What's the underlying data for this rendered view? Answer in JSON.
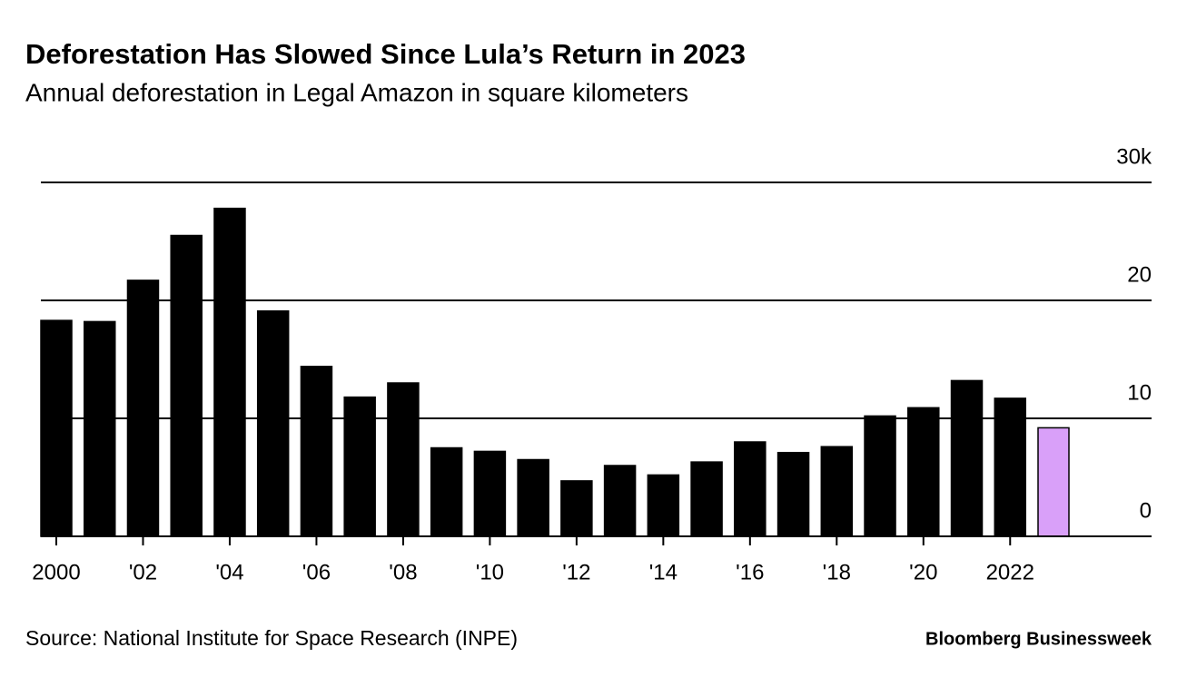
{
  "chart_data": {
    "type": "bar",
    "title": "Deforestation Has Slowed Since Lula’s Return in 2023",
    "subtitle": "Annual deforestation in Legal Amazon in square kilometers",
    "source": "Source: National Institute for Space Research (INPE)",
    "brand": "Bloomberg Businessweek",
    "categories": [
      "2000",
      null,
      "'02",
      null,
      "'04",
      null,
      "'06",
      null,
      "'08",
      null,
      "'10",
      null,
      "'12",
      null,
      "'14",
      null,
      "'16",
      null,
      "'18",
      null,
      "'20",
      null,
      "2022",
      null
    ],
    "values": [
      18.3,
      18.2,
      21.7,
      25.5,
      27.8,
      19.1,
      14.4,
      11.8,
      13.0,
      7.5,
      7.2,
      6.5,
      4.7,
      6.0,
      5.2,
      6.3,
      8.0,
      7.1,
      7.6,
      10.2,
      10.9,
      13.2,
      11.7,
      9.2
    ],
    "colors": [
      "#000000",
      "#000000",
      "#000000",
      "#000000",
      "#000000",
      "#000000",
      "#000000",
      "#000000",
      "#000000",
      "#000000",
      "#000000",
      "#000000",
      "#000000",
      "#000000",
      "#000000",
      "#000000",
      "#000000",
      "#000000",
      "#000000",
      "#000000",
      "#000000",
      "#000000",
      "#000000",
      "#d9a0f9"
    ],
    "ylim": [
      0,
      30
    ],
    "yticks": [
      0,
      10,
      20,
      {
        "value": 30,
        "label": "30k"
      }
    ],
    "grid": true
  }
}
